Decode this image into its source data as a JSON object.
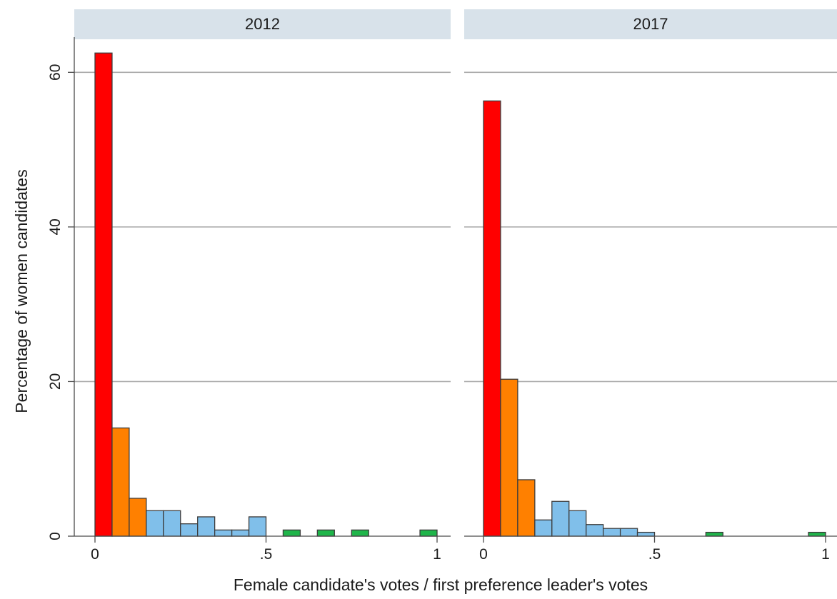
{
  "chart_data": {
    "type": "bar",
    "ylabel": "Percentage of women candidates",
    "xlabel": "Female candidate's votes / first preference leader's votes",
    "ylim": [
      0,
      64
    ],
    "yticks": [
      0,
      20,
      40,
      60
    ],
    "xlim": [
      -0.05,
      1.04
    ],
    "xticks": [
      {
        "value": 0,
        "label": "0"
      },
      {
        "value": 0.5,
        "label": ".5"
      },
      {
        "value": 1,
        "label": "1"
      }
    ],
    "bin_width": 0.05,
    "grid": "horizontal",
    "colors": {
      "bin_1": "#ff0000",
      "bins_2_3": "#ff8000",
      "bins_4_10": "#80bfea",
      "bins_11_20": "#1fb54a",
      "header_bg": "#d8e2ea",
      "grid": "#a8a8a8",
      "bar_edge": "#3c3c3c"
    },
    "panels": [
      {
        "title": "2012",
        "values": [
          62.5,
          14.0,
          4.9,
          3.3,
          3.3,
          1.6,
          2.5,
          0.8,
          0.8,
          2.5,
          0,
          0.8,
          0,
          0.8,
          0,
          0.8,
          0,
          0,
          0,
          0.8
        ]
      },
      {
        "title": "2017",
        "values": [
          56.3,
          20.3,
          7.3,
          2.1,
          4.5,
          3.3,
          1.5,
          1.0,
          1.0,
          0.5,
          0,
          0,
          0,
          0.5,
          0,
          0,
          0,
          0,
          0,
          0.5
        ]
      }
    ]
  }
}
